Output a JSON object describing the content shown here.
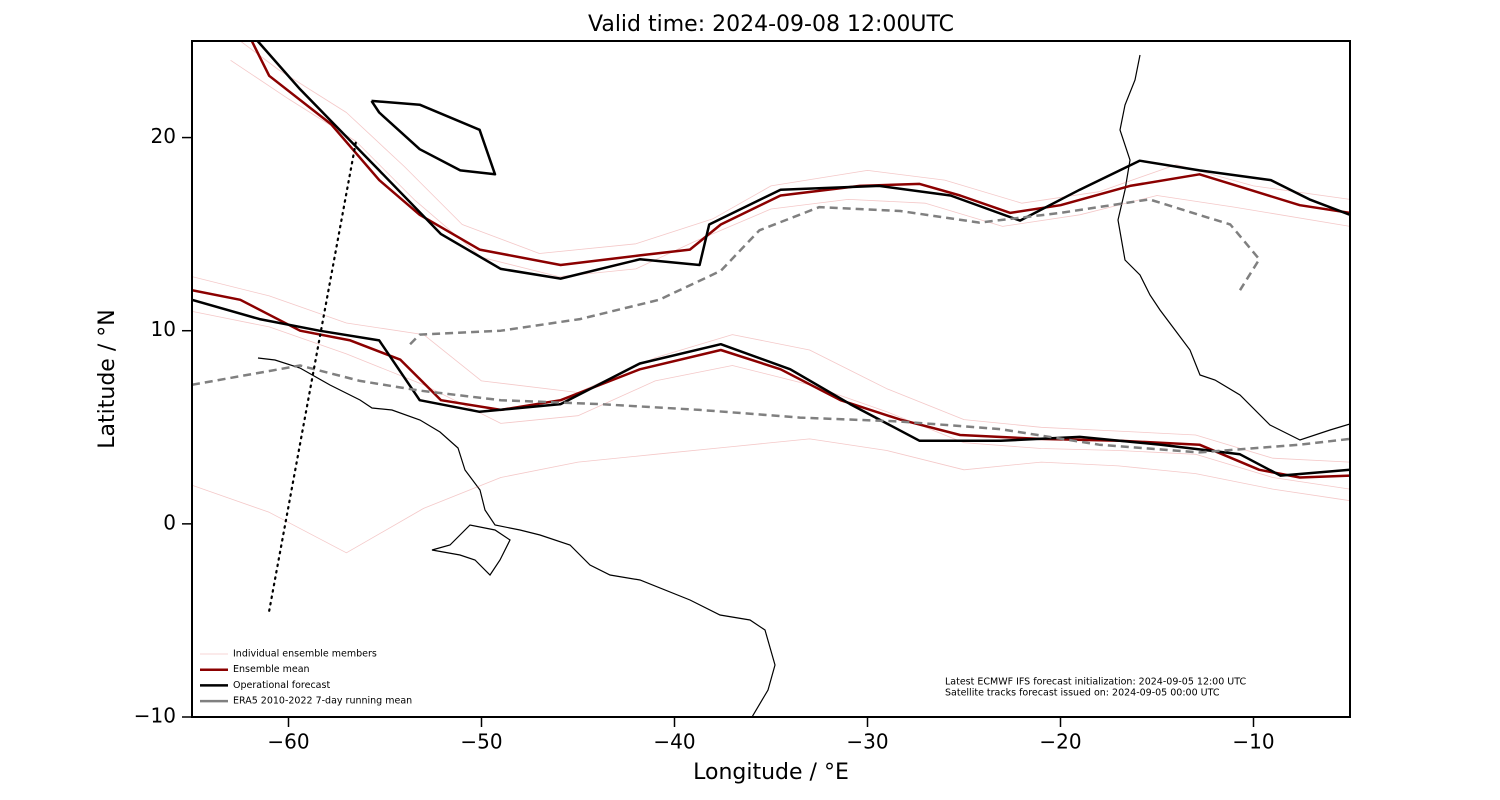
{
  "chart_data": {
    "type": "line",
    "title": "Valid time: 2024-09-08 12:00UTC",
    "x_label": "Longitude / °E",
    "y_label": "Latitude / °N",
    "xlim": [
      -65,
      -5
    ],
    "ylim": [
      -10,
      25
    ],
    "xticks": [
      {
        "value": -60,
        "label": "−60"
      },
      {
        "value": -50,
        "label": "−50"
      },
      {
        "value": -40,
        "label": "−40"
      },
      {
        "value": -30,
        "label": "−30"
      },
      {
        "value": -20,
        "label": "−20"
      },
      {
        "value": -10,
        "label": "−10"
      }
    ],
    "yticks": [
      {
        "value": -10,
        "label": "−10"
      },
      0,
      10,
      20
    ],
    "legend": "lower left",
    "series": [
      {
        "name": "Individual ensemble members",
        "color": "#e06060",
        "width": 0.8,
        "opacity": 0.35,
        "dash": "none",
        "x": [
          -62.5,
          -60.5,
          -57,
          -54,
          -51,
          -47,
          -42,
          -38,
          -35,
          -30,
          -26,
          -22,
          -18,
          -14,
          -10,
          -5,
          null,
          -63,
          -60,
          -56.5,
          -53.5,
          -50,
          -46,
          -42,
          -39,
          -35,
          -31,
          -27,
          -23,
          -19,
          -15,
          -11,
          -5,
          null,
          -65,
          -61,
          -57,
          -53,
          -50,
          -45,
          -41,
          -37,
          -33,
          -29,
          -25,
          -21,
          -17,
          -13,
          -9,
          -5,
          null,
          -65,
          -61,
          -57,
          -53,
          -49,
          -45,
          -41,
          -37,
          -33,
          -29,
          -25,
          -21,
          -17,
          -13,
          -9,
          -5,
          null,
          -65,
          -61,
          -57,
          -53,
          -49,
          -45,
          -41,
          -37,
          -33,
          -29,
          -25,
          -21,
          -17,
          -13,
          -9,
          -5
        ],
        "values": [
          25,
          23.5,
          21.3,
          18.5,
          15.5,
          14,
          14.5,
          15.8,
          17.5,
          18.3,
          17.8,
          16.6,
          17.2,
          18.6,
          17.5,
          16.8,
          null,
          24,
          22,
          19.8,
          16.8,
          13.8,
          12.8,
          13.2,
          14.6,
          16.3,
          16.8,
          16.6,
          15.4,
          16,
          17,
          16.4,
          15.4,
          null,
          12.8,
          11.8,
          10.4,
          9.8,
          7.4,
          6.8,
          8.6,
          9.8,
          9,
          7,
          5.4,
          5,
          4.8,
          4.6,
          3.4,
          3.2,
          null,
          11,
          10.2,
          8.8,
          7.2,
          5.2,
          5.6,
          7.4,
          8.2,
          7.2,
          5.8,
          4.2,
          3.9,
          3.8,
          3.6,
          2.4,
          1.8,
          null,
          2,
          0.6,
          -1.5,
          0.8,
          2.4,
          3.2,
          3.6,
          4,
          4.4,
          3.8,
          2.8,
          3.2,
          3,
          2.6,
          1.8,
          1.2
        ]
      },
      {
        "name": "Ensemble mean",
        "color": "#8b0000",
        "width": 2.5,
        "opacity": 1,
        "dash": "none",
        "x": [
          -61.9,
          -61.0,
          -57.8,
          -55.3,
          -53.2,
          -50.1,
          -45.9,
          -41.8,
          -39.2,
          -37.6,
          -34.5,
          -30.4,
          -27.3,
          -25.2,
          -22.6,
          -20.0,
          -16.4,
          -12.8,
          -10.2,
          -7.6,
          -5.0,
          null,
          -65,
          -62.5,
          -59.4,
          -56.8,
          -54.2,
          -52.1,
          -49.0,
          -45.9,
          -41.8,
          -37.6,
          -34.5,
          -31.4,
          -28.3,
          -25.2,
          -21.1,
          -16.9,
          -12.8,
          -9.7,
          -7.6,
          -5.0
        ],
        "values": [
          25,
          23.2,
          20.7,
          17.8,
          16.0,
          14.2,
          13.4,
          13.9,
          14.2,
          15.5,
          17.0,
          17.5,
          17.6,
          17.0,
          16.1,
          16.5,
          17.5,
          18.1,
          17.3,
          16.5,
          16.1,
          null,
          12.1,
          11.6,
          10.0,
          9.5,
          8.5,
          6.4,
          5.9,
          6.4,
          8.0,
          9.0,
          8.0,
          6.4,
          5.4,
          4.6,
          4.4,
          4.3,
          4.1,
          2.8,
          2.4,
          2.5
        ]
      },
      {
        "name": "Operational forecast",
        "color": "#000000",
        "width": 2.5,
        "opacity": 1,
        "dash": "none",
        "x": [
          -61.6,
          -59.4,
          -55.3,
          -52.1,
          -49.0,
          -45.9,
          -41.8,
          -38.7,
          -38.2,
          -34.5,
          -29.4,
          -25.7,
          -22.1,
          -19.0,
          -15.9,
          -12.8,
          -9.1,
          -7.1,
          -5.0,
          null,
          -65,
          -61.5,
          -58.4,
          -55.3,
          -53.2,
          -50.1,
          -45.9,
          -41.8,
          -37.6,
          -34.0,
          -30.9,
          -27.3,
          -23.1,
          -19.0,
          -14.8,
          -10.7,
          -8.6,
          -5.0,
          null,
          -55.7,
          -53.2,
          -50.1,
          -49.3,
          -51.1,
          -53.2,
          -55.3,
          -55.7
        ],
        "values": [
          25,
          22.5,
          18.3,
          15.0,
          13.2,
          12.7,
          13.7,
          13.4,
          15.5,
          17.3,
          17.5,
          17.0,
          15.7,
          17.3,
          18.8,
          18.3,
          17.8,
          16.8,
          16.0,
          null,
          11.6,
          10.6,
          10.0,
          9.5,
          6.4,
          5.8,
          6.2,
          8.3,
          9.3,
          8.0,
          6.2,
          4.3,
          4.3,
          4.5,
          4.1,
          3.6,
          2.5,
          2.8,
          null,
          21.9,
          21.7,
          20.4,
          18.1,
          18.3,
          19.4,
          21.3,
          21.9
        ]
      },
      {
        "name": "ERA5 2010-2022 7-day running mean",
        "color": "#808080",
        "width": 2.5,
        "opacity": 1,
        "dash": "8 5",
        "x": [
          -53.7,
          -53.2,
          -49.0,
          -44.9,
          -40.8,
          -37.6,
          -35.6,
          -32.5,
          -28.3,
          -24.2,
          -20.0,
          -15.4,
          -11.2,
          -9.7,
          -10.7,
          null,
          -65,
          -59.4,
          -56.3,
          -53.2,
          -49.0,
          -43.9,
          -38.7,
          -33.5,
          -28.3,
          -23.1,
          -18.0,
          -12.8,
          -7.6,
          -5.0
        ],
        "values": [
          9.3,
          9.8,
          10.0,
          10.6,
          11.6,
          13.1,
          15.2,
          16.4,
          16.2,
          15.6,
          16.1,
          16.8,
          15.5,
          13.7,
          12.1,
          null,
          7.2,
          8.2,
          7.4,
          6.9,
          6.4,
          6.2,
          5.9,
          5.5,
          5.3,
          4.9,
          4.1,
          3.7,
          4.1,
          4.4
        ]
      }
    ],
    "track": {
      "x": [
        -61,
        -56.5
      ],
      "values": [
        -4.5,
        19.8
      ]
    },
    "annotations": [
      "Latest ECMWF IFS forecast initialization: 2024-09-05 12:00 UTC",
      "Satellite tracks forecast issued on: 2024-09-05 00:00 UTC"
    ]
  }
}
